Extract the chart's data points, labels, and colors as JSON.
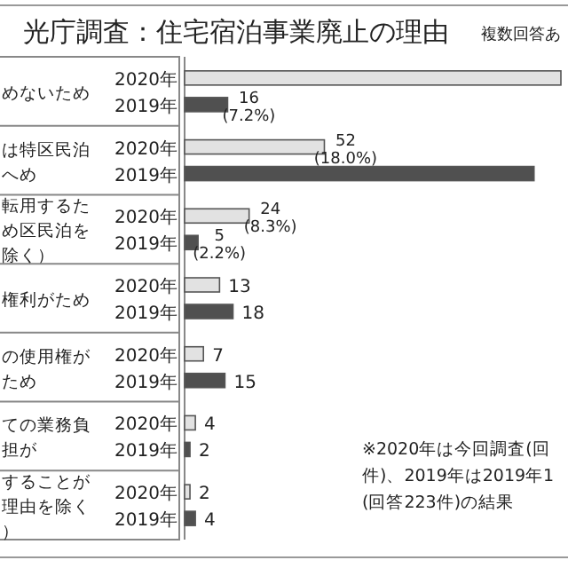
{
  "chart_data": {
    "type": "bar",
    "orientation": "horizontal",
    "title": "光庁調査：住宅宿泊事業廃止の理由",
    "subtitle": "複数回答あ",
    "categories": [
      "めないため",
      "は特区民泊へめ",
      "転用するため区民泊を除く）",
      "権利がため",
      "の使用権がため",
      "ての業務負担が",
      "することが理由を除く）"
    ],
    "series": [
      {
        "name": "2020年",
        "color": "#e2e2e2",
        "values": [
          140,
          52,
          24,
          13,
          7,
          4,
          2
        ],
        "value_labels": [
          null,
          "52\n(18.0%)",
          "24\n(8.3%)",
          "13",
          "7",
          "4",
          "2"
        ]
      },
      {
        "name": "2019年",
        "color": "#505050",
        "values": [
          16,
          130,
          5,
          18,
          15,
          2,
          4
        ],
        "value_labels": [
          "16\n(7.2%)",
          null,
          "5\n(2.2%)",
          "18",
          "15",
          "2",
          "4"
        ]
      }
    ],
    "annotations": [
      "※2020年は今回調査(回件)、2019年は2019年1(回答223件)の結果"
    ]
  }
}
